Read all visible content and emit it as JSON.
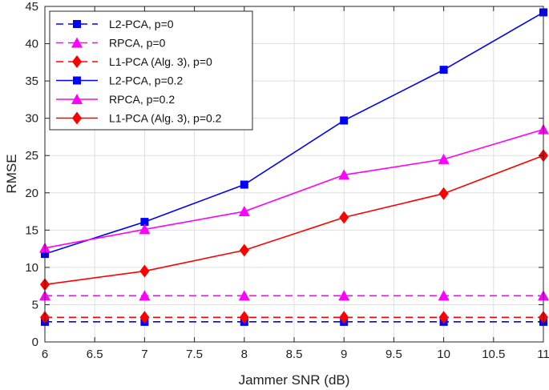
{
  "chart_data": {
    "type": "line",
    "title": "",
    "xlabel": "Jammer SNR (dB)",
    "ylabel": "RMSE",
    "xlim": [
      6,
      11
    ],
    "ylim": [
      0,
      45
    ],
    "xticks": [
      6,
      6.5,
      7,
      7.5,
      8,
      8.5,
      9,
      9.5,
      10,
      10.5,
      11
    ],
    "xtick_labels": [
      "6",
      "6.5",
      "7",
      "7.5",
      "8",
      "8.5",
      "9",
      "9.5",
      "10",
      "10.5",
      "11"
    ],
    "yticks": [
      0,
      5,
      10,
      15,
      20,
      25,
      30,
      35,
      40,
      45
    ],
    "ytick_labels": [
      "0",
      "5",
      "10",
      "15",
      "20",
      "25",
      "30",
      "35",
      "40",
      "45"
    ],
    "grid": true,
    "legend_position": "top-left",
    "x": [
      6,
      7,
      8,
      9,
      10,
      11
    ],
    "series": [
      {
        "name": "L2-PCA, p=0",
        "color": "#0000ff",
        "dash": "dashed",
        "marker": "square",
        "values": [
          2.7,
          2.7,
          2.7,
          2.7,
          2.7,
          2.7
        ]
      },
      {
        "name": "RPCA, p=0",
        "color": "#ff00ff",
        "dash": "dashed",
        "marker": "triangle",
        "values": [
          6.2,
          6.2,
          6.2,
          6.2,
          6.2,
          6.2
        ]
      },
      {
        "name": "L1-PCA (Alg. 3), p=0",
        "color": "#ff0000",
        "dash": "dashed",
        "marker": "diamond",
        "values": [
          3.3,
          3.3,
          3.3,
          3.3,
          3.3,
          3.3
        ]
      },
      {
        "name": "L2-PCA, p=0.2",
        "color": "#0000ff",
        "dash": "solid",
        "marker": "square",
        "values": [
          11.8,
          16.1,
          21.1,
          29.7,
          36.5,
          44.2
        ]
      },
      {
        "name": "RPCA, p=0.2",
        "color": "#ff00ff",
        "dash": "solid",
        "marker": "triangle",
        "values": [
          12.6,
          15.1,
          17.5,
          22.4,
          24.5,
          28.5
        ]
      },
      {
        "name": "L1-PCA (Alg. 3), p=0.2",
        "color": "#ff0000",
        "dash": "solid",
        "marker": "diamond",
        "values": [
          7.7,
          9.5,
          12.3,
          16.7,
          19.9,
          25.0
        ]
      }
    ]
  }
}
